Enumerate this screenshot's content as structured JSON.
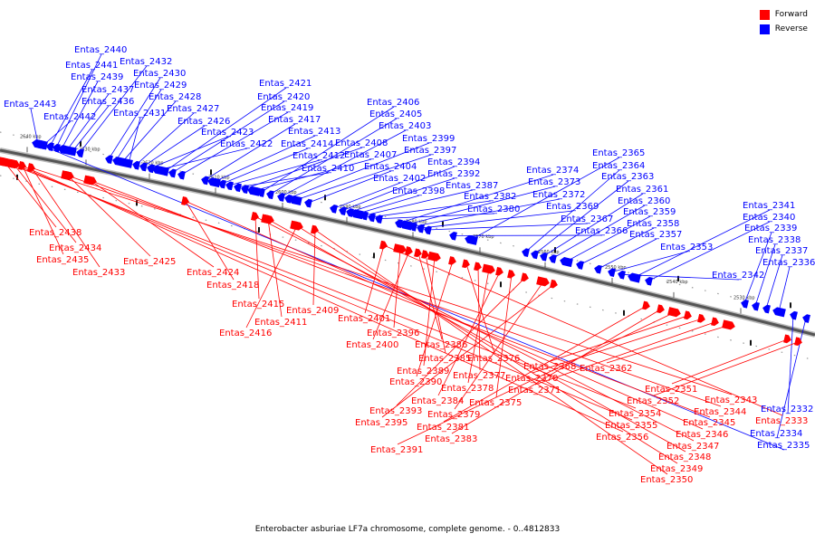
{
  "legend": {
    "forward_label": "Forward",
    "reverse_label": "Reverse",
    "forward_color": "#ff0000",
    "reverse_color": "#0000ff"
  },
  "caption": "Enterobacter asburiae LF7a chromosome, complete genome. - 0..4812833",
  "ticks": [
    "2640 kbp",
    "2630 kbp",
    "2620 kbp",
    "2610 kbp",
    "2600 kbp",
    "2590 kbp",
    "2580 kbp",
    "2570 kbp",
    "2560 kbp",
    "2550 kbp",
    "2540 kbp",
    "2530 kbp"
  ],
  "genes": [
    {
      "name": "Entas_2443",
      "strand": "reverse"
    },
    {
      "name": "Entas_2442",
      "strand": "reverse"
    },
    {
      "name": "Entas_2441",
      "strand": "reverse"
    },
    {
      "name": "Entas_2440",
      "strand": "reverse"
    },
    {
      "name": "Entas_2439",
      "strand": "reverse"
    },
    {
      "name": "Entas_2437",
      "strand": "reverse"
    },
    {
      "name": "Entas_2436",
      "strand": "reverse"
    },
    {
      "name": "Entas_2432",
      "strand": "reverse"
    },
    {
      "name": "Entas_2430",
      "strand": "reverse"
    },
    {
      "name": "Entas_2429",
      "strand": "reverse"
    },
    {
      "name": "Entas_2428",
      "strand": "reverse"
    },
    {
      "name": "Entas_2431",
      "strand": "reverse"
    },
    {
      "name": "Entas_2427",
      "strand": "reverse"
    },
    {
      "name": "Entas_2426",
      "strand": "reverse"
    },
    {
      "name": "Entas_2423",
      "strand": "reverse"
    },
    {
      "name": "Entas_2422",
      "strand": "reverse"
    },
    {
      "name": "Entas_2421",
      "strand": "reverse"
    },
    {
      "name": "Entas_2420",
      "strand": "reverse"
    },
    {
      "name": "Entas_2419",
      "strand": "reverse"
    },
    {
      "name": "Entas_2417",
      "strand": "reverse"
    },
    {
      "name": "Entas_2413",
      "strand": "reverse"
    },
    {
      "name": "Entas_2414",
      "strand": "reverse"
    },
    {
      "name": "Entas_2412",
      "strand": "reverse"
    },
    {
      "name": "Entas_2410",
      "strand": "reverse"
    },
    {
      "name": "Entas_2408",
      "strand": "reverse"
    },
    {
      "name": "Entas_2407",
      "strand": "reverse"
    },
    {
      "name": "Entas_2406",
      "strand": "reverse"
    },
    {
      "name": "Entas_2405",
      "strand": "reverse"
    },
    {
      "name": "Entas_2403",
      "strand": "reverse"
    },
    {
      "name": "Entas_2399",
      "strand": "reverse"
    },
    {
      "name": "Entas_2397",
      "strand": "reverse"
    },
    {
      "name": "Entas_2404",
      "strand": "reverse"
    },
    {
      "name": "Entas_2402",
      "strand": "reverse"
    },
    {
      "name": "Entas_2394",
      "strand": "reverse"
    },
    {
      "name": "Entas_2392",
      "strand": "reverse"
    },
    {
      "name": "Entas_2398",
      "strand": "reverse"
    },
    {
      "name": "Entas_2387",
      "strand": "reverse"
    },
    {
      "name": "Entas_2382",
      "strand": "reverse"
    },
    {
      "name": "Entas_2380",
      "strand": "reverse"
    },
    {
      "name": "Entas_2374",
      "strand": "reverse"
    },
    {
      "name": "Entas_2373",
      "strand": "reverse"
    },
    {
      "name": "Entas_2372",
      "strand": "reverse"
    },
    {
      "name": "Entas_2369",
      "strand": "reverse"
    },
    {
      "name": "Entas_2367",
      "strand": "reverse"
    },
    {
      "name": "Entas_2366",
      "strand": "reverse"
    },
    {
      "name": "Entas_2365",
      "strand": "reverse"
    },
    {
      "name": "Entas_2364",
      "strand": "reverse"
    },
    {
      "name": "Entas_2363",
      "strand": "reverse"
    },
    {
      "name": "Entas_2361",
      "strand": "reverse"
    },
    {
      "name": "Entas_2360",
      "strand": "reverse"
    },
    {
      "name": "Entas_2359",
      "strand": "reverse"
    },
    {
      "name": "Entas_2358",
      "strand": "reverse"
    },
    {
      "name": "Entas_2357",
      "strand": "reverse"
    },
    {
      "name": "Entas_2353",
      "strand": "reverse"
    },
    {
      "name": "Entas_2342",
      "strand": "reverse"
    },
    {
      "name": "Entas_2341",
      "strand": "reverse"
    },
    {
      "name": "Entas_2340",
      "strand": "reverse"
    },
    {
      "name": "Entas_2339",
      "strand": "reverse"
    },
    {
      "name": "Entas_2338",
      "strand": "reverse"
    },
    {
      "name": "Entas_2337",
      "strand": "reverse"
    },
    {
      "name": "Entas_2336",
      "strand": "reverse"
    },
    {
      "name": "Entas_2332",
      "strand": "reverse"
    },
    {
      "name": "Entas_2334",
      "strand": "reverse"
    },
    {
      "name": "Entas_2335",
      "strand": "reverse"
    },
    {
      "name": "Entas_2438",
      "strand": "forward"
    },
    {
      "name": "Entas_2434",
      "strand": "forward"
    },
    {
      "name": "Entas_2435",
      "strand": "forward"
    },
    {
      "name": "Entas_2433",
      "strand": "forward"
    },
    {
      "name": "Entas_2425",
      "strand": "forward"
    },
    {
      "name": "Entas_2424",
      "strand": "forward"
    },
    {
      "name": "Entas_2418",
      "strand": "forward"
    },
    {
      "name": "Entas_2415",
      "strand": "forward"
    },
    {
      "name": "Entas_2411",
      "strand": "forward"
    },
    {
      "name": "Entas_2416",
      "strand": "forward"
    },
    {
      "name": "Entas_2409",
      "strand": "forward"
    },
    {
      "name": "Entas_2401",
      "strand": "forward"
    },
    {
      "name": "Entas_2396",
      "strand": "forward"
    },
    {
      "name": "Entas_2400",
      "strand": "forward"
    },
    {
      "name": "Entas_2386",
      "strand": "forward"
    },
    {
      "name": "Entas_2385",
      "strand": "forward"
    },
    {
      "name": "Entas_2389",
      "strand": "forward"
    },
    {
      "name": "Entas_2390",
      "strand": "forward"
    },
    {
      "name": "Entas_2376",
      "strand": "forward"
    },
    {
      "name": "Entas_2377",
      "strand": "forward"
    },
    {
      "name": "Entas_2378",
      "strand": "forward"
    },
    {
      "name": "Entas_2384",
      "strand": "forward"
    },
    {
      "name": "Entas_2375",
      "strand": "forward"
    },
    {
      "name": "Entas_2393",
      "strand": "forward"
    },
    {
      "name": "Entas_2379",
      "strand": "forward"
    },
    {
      "name": "Entas_2395",
      "strand": "forward"
    },
    {
      "name": "Entas_2381",
      "strand": "forward"
    },
    {
      "name": "Entas_2383",
      "strand": "forward"
    },
    {
      "name": "Entas_2391",
      "strand": "forward"
    },
    {
      "name": "Entas_2368",
      "strand": "forward"
    },
    {
      "name": "Entas_2370",
      "strand": "forward"
    },
    {
      "name": "Entas_2371",
      "strand": "forward"
    },
    {
      "name": "Entas_2362",
      "strand": "forward"
    },
    {
      "name": "Entas_2351",
      "strand": "forward"
    },
    {
      "name": "Entas_2352",
      "strand": "forward"
    },
    {
      "name": "Entas_2354",
      "strand": "forward"
    },
    {
      "name": "Entas_2355",
      "strand": "forward"
    },
    {
      "name": "Entas_2356",
      "strand": "forward"
    },
    {
      "name": "Entas_2343",
      "strand": "forward"
    },
    {
      "name": "Entas_2344",
      "strand": "forward"
    },
    {
      "name": "Entas_2345",
      "strand": "forward"
    },
    {
      "name": "Entas_2346",
      "strand": "forward"
    },
    {
      "name": "Entas_2347",
      "strand": "forward"
    },
    {
      "name": "Entas_2348",
      "strand": "forward"
    },
    {
      "name": "Entas_2349",
      "strand": "forward"
    },
    {
      "name": "Entas_2350",
      "strand": "forward"
    },
    {
      "name": "Entas_2333",
      "strand": "forward"
    }
  ]
}
